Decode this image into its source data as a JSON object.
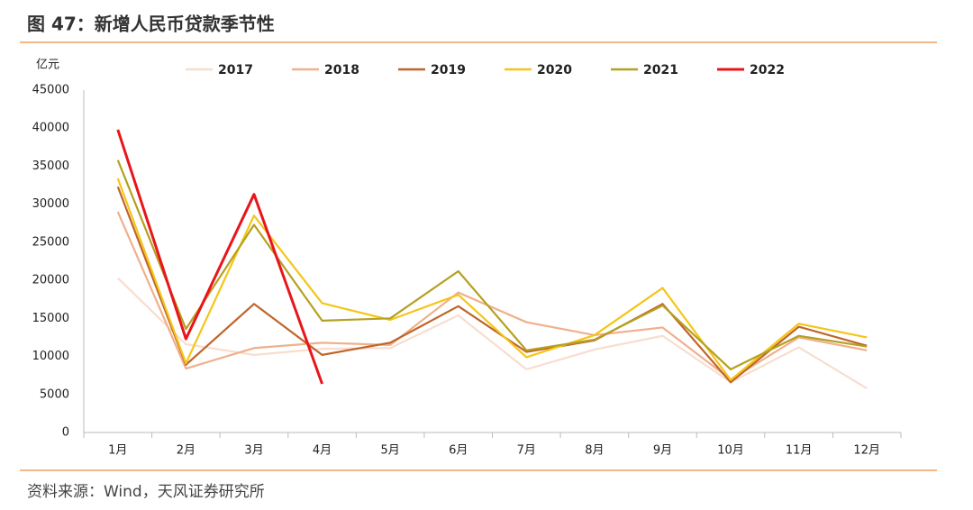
{
  "chart_data": {
    "type": "line",
    "title": "图 47：新增人民币贷款季节性",
    "y_label": "亿元",
    "source": "资料来源：Wind，天风证券研究所",
    "categories": [
      "1月",
      "2月",
      "3月",
      "4月",
      "5月",
      "6月",
      "7月",
      "8月",
      "9月",
      "10月",
      "11月",
      "12月"
    ],
    "series": [
      {
        "name": "2017",
        "color": "#f8ddd0",
        "values": [
          20300,
          11600,
          10200,
          11000,
          11100,
          15400,
          8300,
          10900,
          12700,
          6600,
          11200,
          5800
        ]
      },
      {
        "name": "2018",
        "color": "#efb08c",
        "values": [
          29000,
          8400,
          11100,
          11800,
          11500,
          18400,
          14500,
          12800,
          13800,
          6970,
          12500,
          10800
        ]
      },
      {
        "name": "2019",
        "color": "#c0652a",
        "values": [
          32300,
          8900,
          16900,
          10200,
          11800,
          16600,
          10600,
          12100,
          16900,
          6600,
          13900,
          11400
        ]
      },
      {
        "name": "2020",
        "color": "#f5c518",
        "values": [
          33400,
          9100,
          28500,
          17000,
          14800,
          18100,
          9900,
          12800,
          19000,
          6900,
          14300,
          12500
        ]
      },
      {
        "name": "2021",
        "color": "#b5a020",
        "values": [
          35800,
          13600,
          27300,
          14700,
          15000,
          21200,
          10800,
          12200,
          16700,
          8300,
          12700,
          11300
        ]
      },
      {
        "name": "2022",
        "color": "#e8151b",
        "values": [
          39800,
          12300,
          31300,
          6400,
          null,
          null,
          null,
          null,
          null,
          null,
          null,
          null
        ]
      }
    ],
    "ylim": [
      0,
      45000
    ],
    "yticks": [
      0,
      5000,
      10000,
      15000,
      20000,
      25000,
      30000,
      35000,
      40000,
      45000
    ],
    "grid": false,
    "legend": "top"
  }
}
